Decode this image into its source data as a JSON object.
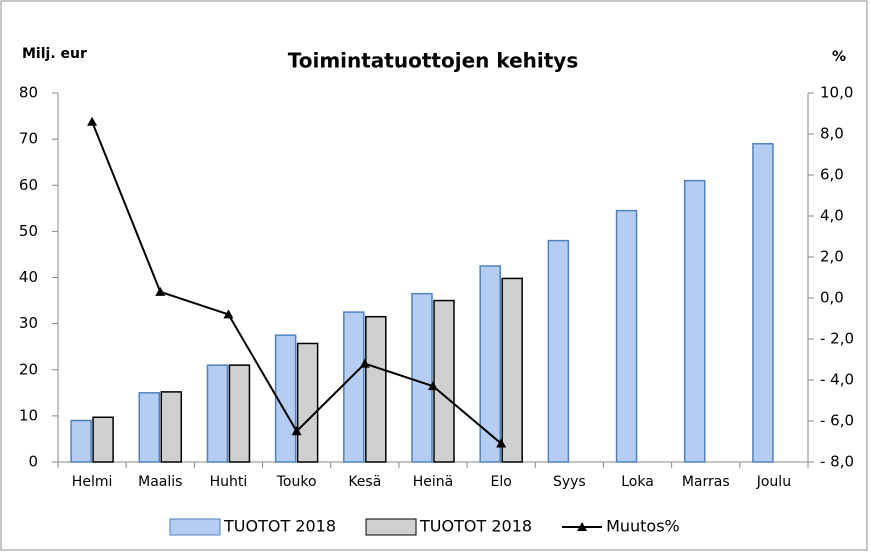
{
  "chart_data": {
    "type": "bar-line",
    "title": "Toimintatuottojen kehitys",
    "y_label": "Milj. eur",
    "y2_label": "%",
    "categories": [
      "Helmi",
      "Maalis",
      "Huhti",
      "Touko",
      "Kesä",
      "Heinä",
      "Elo",
      "Syys",
      "Loka",
      "Marras",
      "Joulu"
    ],
    "series": [
      {
        "name": "TUOTOT 2018",
        "type": "bar",
        "color": "#b4cdf0",
        "values": [
          9,
          15,
          21,
          27.5,
          32.5,
          36.5,
          42.5,
          48,
          54.5,
          61,
          69
        ]
      },
      {
        "name": "TUOTOT 2018",
        "type": "bar",
        "color": "#d0d0d0",
        "values": [
          9.7,
          15.2,
          21,
          25.7,
          31.5,
          35,
          39.8,
          null,
          null,
          null,
          null
        ]
      },
      {
        "name": "Muutos%",
        "type": "line",
        "axis": "y2",
        "color": "#000000",
        "values": [
          8.6,
          0.3,
          -0.8,
          -6.5,
          -3.2,
          -4.3,
          -7.1,
          null,
          null,
          null,
          null
        ]
      }
    ],
    "ylim": [
      0,
      80
    ],
    "yticks": [
      0,
      10,
      20,
      30,
      40,
      50,
      60,
      70,
      80
    ],
    "y2lim": [
      -8,
      10
    ],
    "y2ticks": [
      {
        "value": -8,
        "label": "- 8,0"
      },
      {
        "value": -6,
        "label": "- 6,0"
      },
      {
        "value": -4,
        "label": "- 4,0"
      },
      {
        "value": -2,
        "label": "- 2,0"
      },
      {
        "value": 0,
        "label": "0,0"
      },
      {
        "value": 2,
        "label": "2,0"
      },
      {
        "value": 4,
        "label": "4,0"
      },
      {
        "value": 6,
        "label": "6,0"
      },
      {
        "value": 8,
        "label": "8,0"
      },
      {
        "value": 10,
        "label": "10,0"
      }
    ],
    "legend": "bottom"
  }
}
